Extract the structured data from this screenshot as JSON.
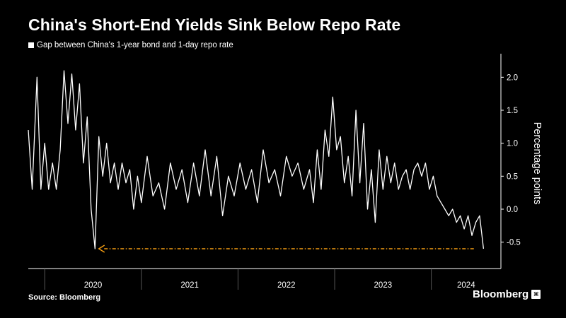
{
  "title": "China's Short-End Yields Sink Below Repo Rate",
  "source": "Source: Bloomberg",
  "brand": "Bloomberg",
  "brand_icon_glyph": "⌘",
  "colors": {
    "background": "#000000",
    "line": "#ffffff",
    "arrow": "#f39c12"
  },
  "chart_data": {
    "type": "line",
    "title": "China's Short-End Yields Sink Below Repo Rate",
    "series": [
      {
        "name": "Gap between China's 1-year bond and 1-day repo rate",
        "x": [
          2019.83,
          2019.87,
          2019.92,
          2019.96,
          2020.0,
          2020.04,
          2020.08,
          2020.12,
          2020.16,
          2020.2,
          2020.24,
          2020.28,
          2020.32,
          2020.36,
          2020.4,
          2020.44,
          2020.48,
          2020.52,
          2020.56,
          2020.6,
          2020.64,
          2020.68,
          2020.72,
          2020.76,
          2020.8,
          2020.84,
          2020.88,
          2020.92,
          2020.96,
          2021.0,
          2021.06,
          2021.12,
          2021.18,
          2021.24,
          2021.3,
          2021.36,
          2021.42,
          2021.48,
          2021.54,
          2021.6,
          2021.66,
          2021.72,
          2021.78,
          2021.84,
          2021.9,
          2021.96,
          2022.02,
          2022.08,
          2022.14,
          2022.2,
          2022.26,
          2022.32,
          2022.38,
          2022.44,
          2022.5,
          2022.56,
          2022.62,
          2022.68,
          2022.74,
          2022.78,
          2022.82,
          2022.86,
          2022.9,
          2022.94,
          2022.98,
          2023.02,
          2023.06,
          2023.1,
          2023.14,
          2023.18,
          2023.22,
          2023.26,
          2023.3,
          2023.34,
          2023.38,
          2023.42,
          2023.46,
          2023.5,
          2023.54,
          2023.58,
          2023.62,
          2023.66,
          2023.7,
          2023.74,
          2023.78,
          2023.82,
          2023.86,
          2023.9,
          2023.94,
          2023.98,
          2024.02,
          2024.06,
          2024.1,
          2024.14,
          2024.18,
          2024.22,
          2024.26,
          2024.3,
          2024.34,
          2024.38,
          2024.42,
          2024.46,
          2024.5,
          2024.54
        ],
        "values": [
          1.2,
          0.3,
          2.0,
          0.3,
          1.0,
          0.3,
          0.7,
          0.3,
          0.9,
          2.1,
          1.3,
          2.05,
          1.2,
          1.9,
          0.7,
          1.4,
          0.0,
          -0.6,
          1.1,
          0.5,
          1.0,
          0.4,
          0.7,
          0.3,
          0.7,
          0.4,
          0.6,
          0.0,
          0.5,
          0.1,
          0.8,
          0.2,
          0.4,
          0.0,
          0.7,
          0.3,
          0.6,
          0.1,
          0.7,
          0.2,
          0.9,
          0.2,
          0.8,
          -0.1,
          0.5,
          0.2,
          0.7,
          0.3,
          0.6,
          0.1,
          0.9,
          0.4,
          0.6,
          0.2,
          0.8,
          0.5,
          0.7,
          0.3,
          0.6,
          0.1,
          0.9,
          0.3,
          1.2,
          0.8,
          1.7,
          0.9,
          1.1,
          0.4,
          0.8,
          0.2,
          1.5,
          0.4,
          1.3,
          0.0,
          0.6,
          -0.2,
          0.9,
          0.3,
          0.8,
          0.4,
          0.7,
          0.3,
          0.5,
          0.6,
          0.3,
          0.6,
          0.7,
          0.5,
          0.7,
          0.3,
          0.5,
          0.2,
          0.1,
          0.0,
          -0.1,
          0.0,
          -0.2,
          -0.1,
          -0.3,
          -0.1,
          -0.4,
          -0.2,
          -0.1,
          -0.6
        ]
      }
    ],
    "x_ticks": [
      "2020",
      "2021",
      "2022",
      "2023",
      "2024"
    ],
    "x_boundaries": [
      2020.0,
      2021.0,
      2022.0,
      2023.0,
      2024.0,
      2025.0
    ],
    "xlim": [
      2019.83,
      2024.72
    ],
    "y_ticks": [
      2.0,
      1.5,
      1.0,
      0.5,
      0.0,
      -0.5
    ],
    "y_tick_labels": [
      "2.0",
      "1.5",
      "1.0",
      "0.5",
      "0.0",
      "-0.5"
    ],
    "ylim": [
      -0.9,
      2.4
    ],
    "xlabel": "",
    "ylabel": "Percentage points",
    "annotation": {
      "type": "dashed-arrow",
      "y": -0.6,
      "x_from": 2024.44,
      "x_to": 2020.56,
      "label": ""
    },
    "legend": "top-left"
  }
}
